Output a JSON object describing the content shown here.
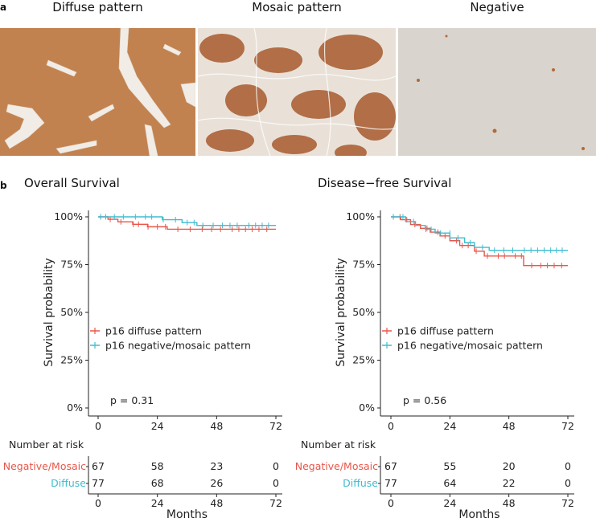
{
  "panel_a": {
    "letter": "a",
    "images": [
      {
        "title": "Diffuse pattern",
        "stain": "diffuse"
      },
      {
        "title": "Mosaic pattern",
        "stain": "mosaic"
      },
      {
        "title": "Negative",
        "stain": "negative"
      }
    ]
  },
  "panel_b": {
    "letter": "b"
  },
  "colors": {
    "diffuse": "#E8564A",
    "negative_mosaic": "#3FBCD0"
  },
  "chart_data": [
    {
      "type": "line",
      "title": "Overall Survival",
      "xlabel": "Months",
      "ylabel": "Survival probability",
      "xlim": [
        0,
        72
      ],
      "ylim": [
        0,
        1
      ],
      "x_ticks": [
        "0",
        "24",
        "48",
        "72"
      ],
      "y_ticks": [
        "0%",
        "25%",
        "50%",
        "75%",
        "100%"
      ],
      "pvalue": "p = 0.31",
      "legend_placement": "left-middle",
      "series": [
        {
          "name": "p16 diffuse pattern",
          "color_key": "diffuse",
          "x": [
            0,
            4,
            8,
            14,
            20,
            28,
            72
          ],
          "y": [
            1.0,
            0.987,
            0.974,
            0.961,
            0.948,
            0.935,
            0.935
          ]
        },
        {
          "name": "p16 negative/mosaic pattern",
          "color_key": "negative_mosaic",
          "x": [
            0,
            26,
            34,
            40,
            72
          ],
          "y": [
            1.0,
            0.985,
            0.97,
            0.955,
            0.955
          ]
        }
      ],
      "risk_table": {
        "title": "Number at risk",
        "x_ticks": [
          "0",
          "24",
          "48",
          "72"
        ],
        "xlabel": "Months",
        "rows": [
          {
            "label": "Negative/Mosaic",
            "color_key": "diffuse",
            "values": [
              "67",
              "58",
              "23",
              "0"
            ]
          },
          {
            "label": "Diffuse",
            "color_key": "negative_mosaic",
            "values": [
              "77",
              "68",
              "26",
              "0"
            ]
          }
        ]
      }
    },
    {
      "type": "line",
      "title": "Disease−free Survival",
      "xlabel": "Months",
      "ylabel": "Survival probability",
      "xlim": [
        0,
        72
      ],
      "ylim": [
        0,
        1
      ],
      "x_ticks": [
        "0",
        "24",
        "48",
        "72"
      ],
      "y_ticks": [
        "0%",
        "25%",
        "50%",
        "75%",
        "100%"
      ],
      "pvalue": "p = 0.56",
      "legend_placement": "left-middle",
      "series": [
        {
          "name": "p16 diffuse pattern",
          "color_key": "diffuse",
          "x": [
            0,
            4,
            8,
            12,
            16,
            20,
            24,
            28,
            34,
            38,
            54,
            72
          ],
          "y": [
            1.0,
            0.985,
            0.96,
            0.94,
            0.92,
            0.9,
            0.875,
            0.85,
            0.82,
            0.795,
            0.745,
            0.745
          ]
        },
        {
          "name": "p16 negative/mosaic pattern",
          "color_key": "negative_mosaic",
          "x": [
            0,
            6,
            10,
            14,
            18,
            24,
            30,
            34,
            40,
            72
          ],
          "y": [
            1.0,
            0.975,
            0.955,
            0.935,
            0.915,
            0.89,
            0.865,
            0.84,
            0.825,
            0.825
          ]
        }
      ],
      "risk_table": {
        "title": "Number at risk",
        "x_ticks": [
          "0",
          "24",
          "48",
          "72"
        ],
        "xlabel": "Months",
        "rows": [
          {
            "label": "Negative/Mosaic",
            "color_key": "diffuse",
            "values": [
              "67",
              "55",
              "20",
              "0"
            ]
          },
          {
            "label": "Diffuse",
            "color_key": "negative_mosaic",
            "values": [
              "77",
              "64",
              "22",
              "0"
            ]
          }
        ]
      }
    }
  ]
}
